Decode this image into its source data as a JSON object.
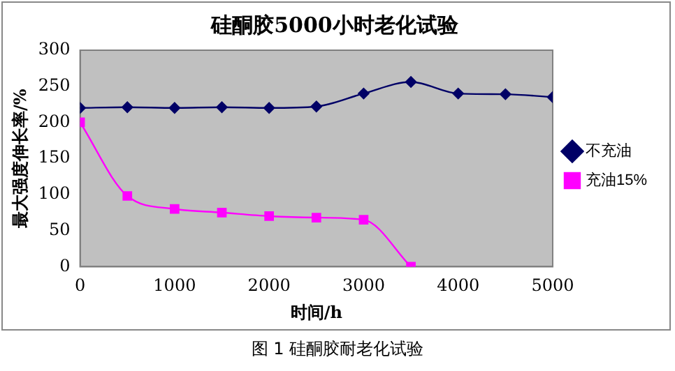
{
  "chart_data": {
    "type": "line",
    "title": "硅酮胶5000小时老化试验",
    "xlabel": "时间/h",
    "ylabel": "最大强度伸长率/%",
    "annotations": [
      "图 1 硅酮胶耐老化试验"
    ],
    "x": [
      0,
      500,
      1000,
      1500,
      2000,
      2500,
      3000,
      3500,
      4000,
      4500,
      5000
    ],
    "series": [
      {
        "name": "不充油",
        "color": "#000066",
        "marker": "diamond",
        "values": [
          220,
          221,
          220,
          221,
          220,
          222,
          240,
          256,
          240,
          239,
          235
        ]
      },
      {
        "name": "充油15%",
        "color": "#ff00ff",
        "marker": "square",
        "values": [
          200,
          98,
          80,
          75,
          70,
          68,
          65,
          0,
          null,
          null,
          null
        ]
      }
    ],
    "xlim": [
      0,
      5000
    ],
    "xticks": [
      0,
      1000,
      2000,
      3000,
      4000,
      5000
    ],
    "ylim": [
      0,
      300
    ],
    "yticks": [
      0,
      50,
      100,
      150,
      200,
      250,
      300
    ],
    "grid": false,
    "legend": "right"
  }
}
